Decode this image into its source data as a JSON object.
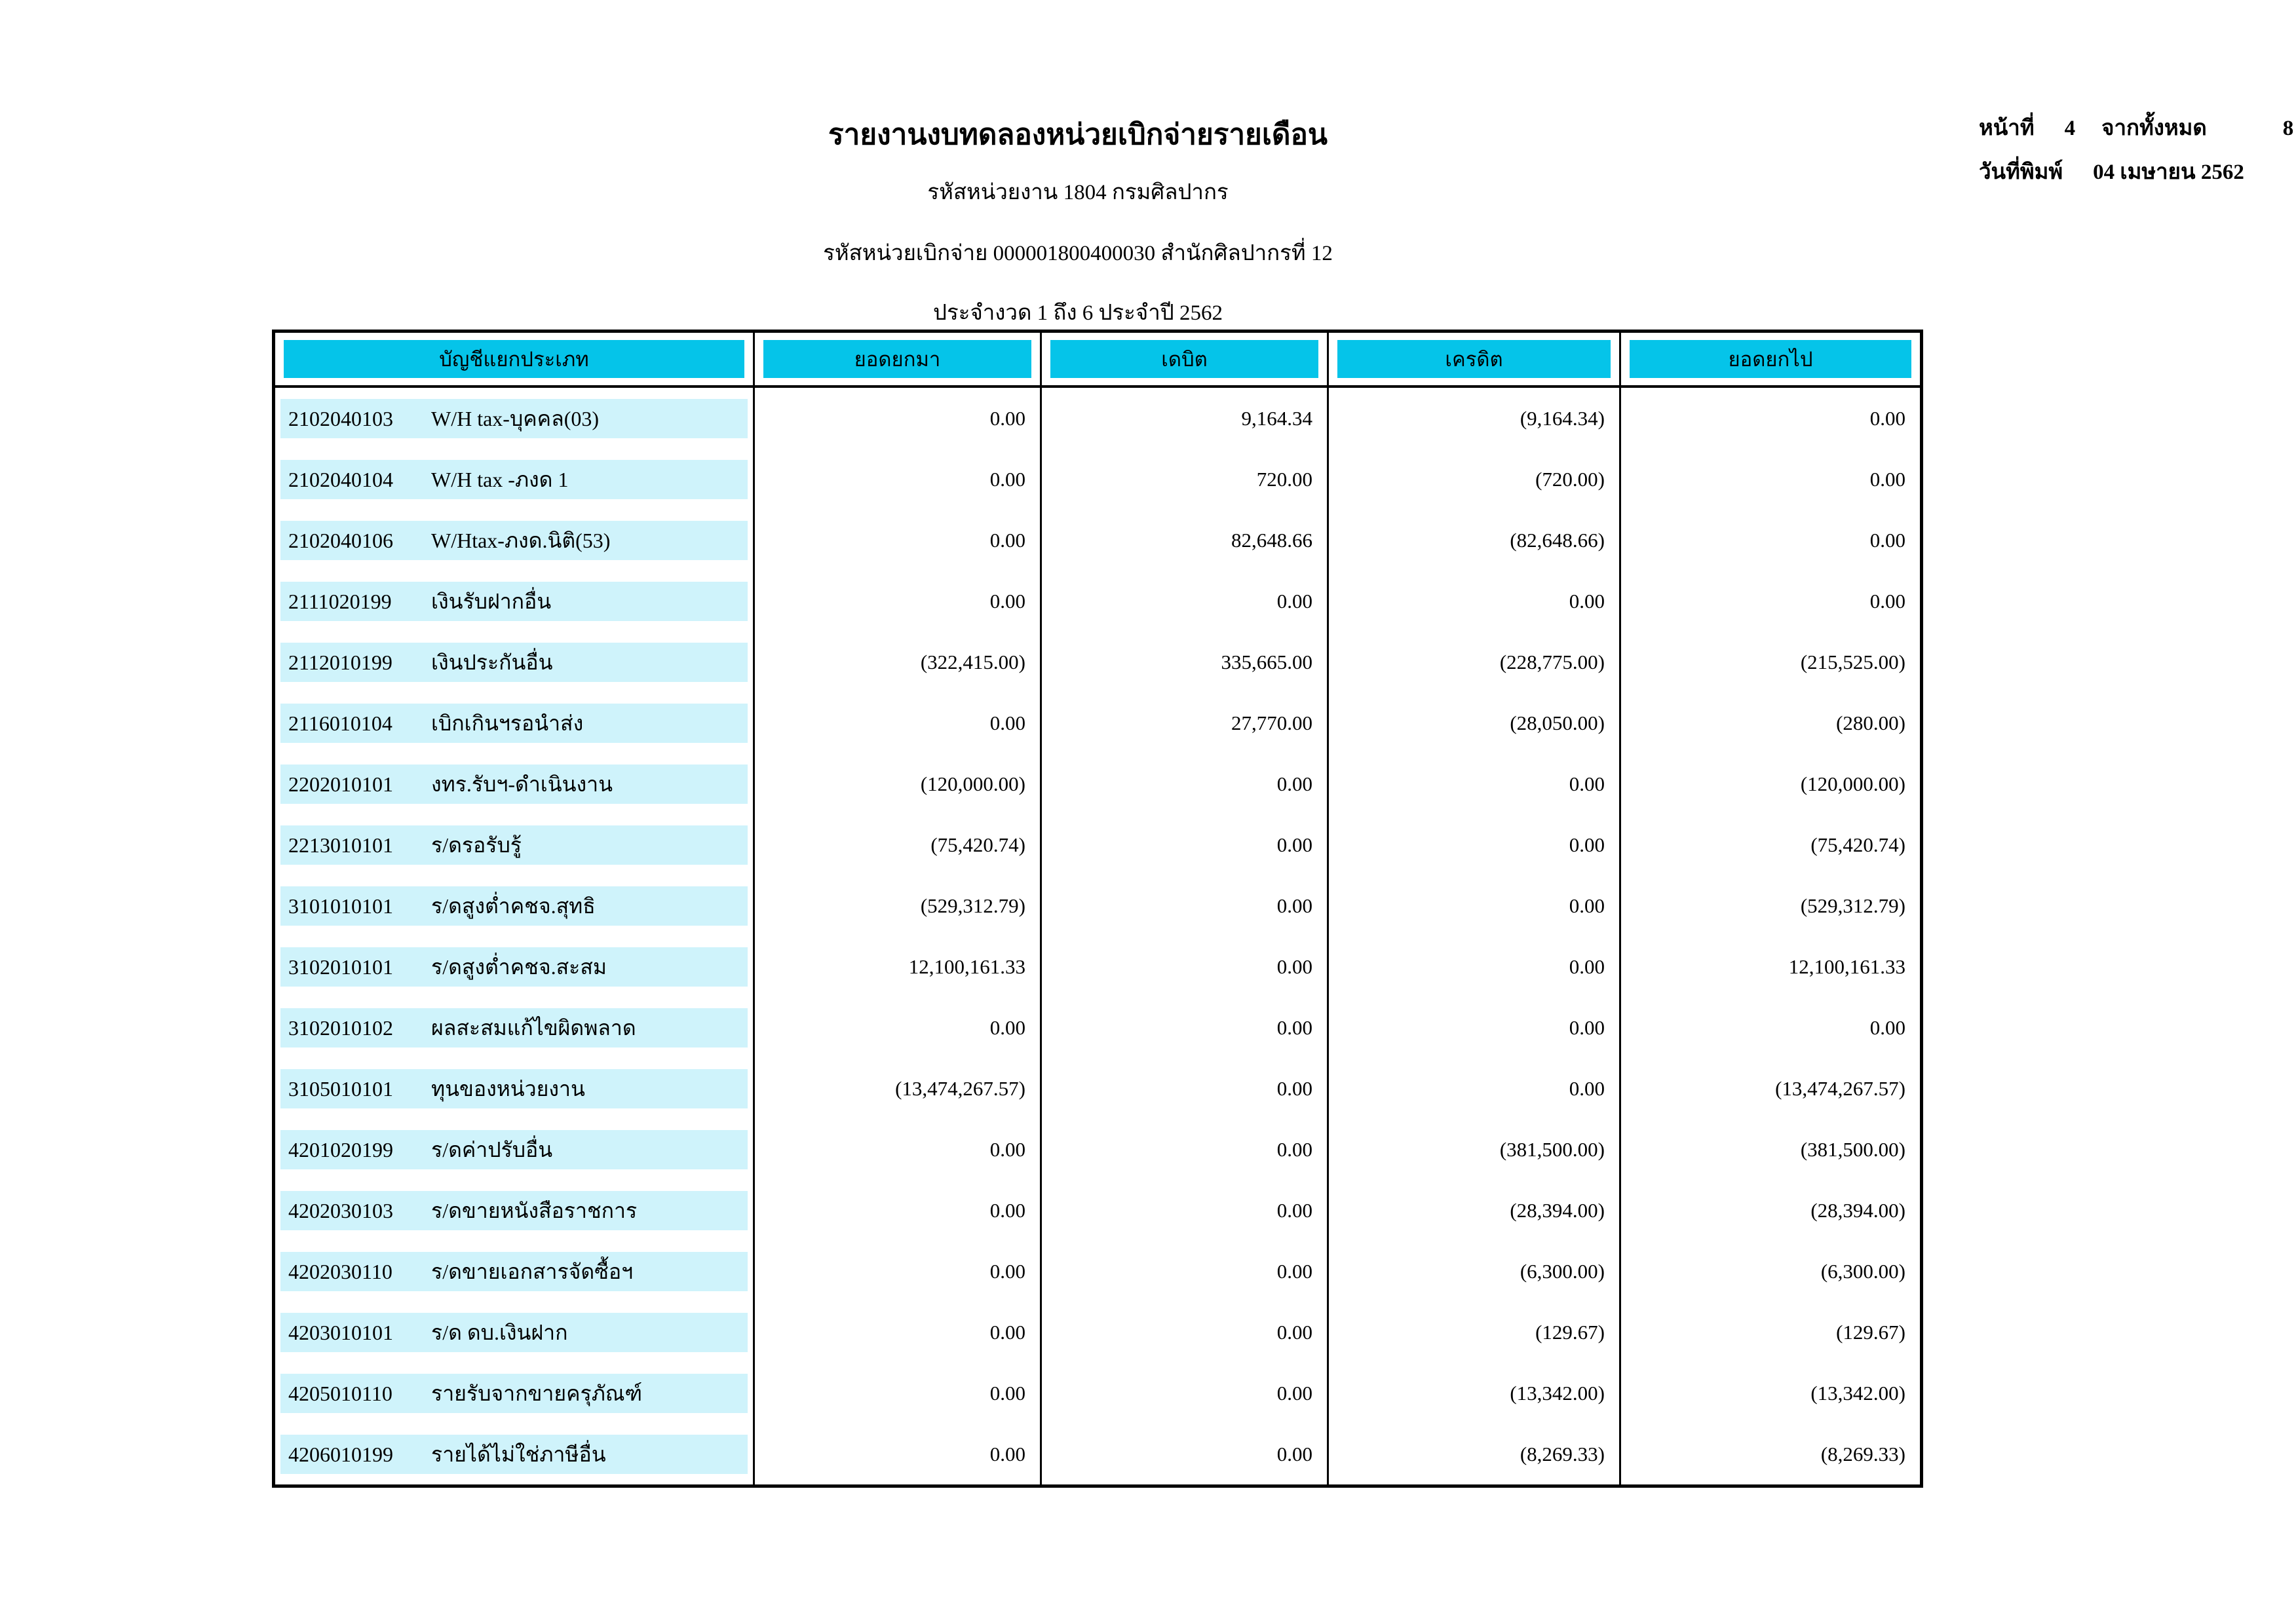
{
  "report": {
    "title": "รายงานงบทดลองหน่วยเบิกจ่ายรายเดือน",
    "agency_line": "รหัสหน่วยงาน 1804 กรมศิลปากร",
    "disbursement_line": "รหัสหน่วยเบิกจ่าย 000001800400030 สำนักศิลปากรที่ 12",
    "period_line": "ประจำงวด 1 ถึง 6 ประจำปี 2562"
  },
  "page_info": {
    "page_label": "หน้าที่",
    "page_number": "4",
    "total_label": "จากทั้งหมด",
    "total_pages": "8",
    "print_date_label": "วันที่พิมพ์",
    "print_date": "04 เมษายน 2562"
  },
  "colors": {
    "header_fill": "#05c4e9",
    "row_fill": "#cff3fb"
  },
  "table": {
    "columns": [
      "บัญชีแยกประเภท",
      "ยอดยกมา",
      "เดบิต",
      "เครดิต",
      "ยอดยกไป"
    ],
    "rows": [
      {
        "code": "2102040103",
        "name": "W/H tax-บุคคล(03)",
        "opening": "0.00",
        "debit": "9,164.34",
        "credit": "(9,164.34)",
        "closing": "0.00"
      },
      {
        "code": "2102040104",
        "name": "W/H tax -ภงด 1",
        "opening": "0.00",
        "debit": "720.00",
        "credit": "(720.00)",
        "closing": "0.00"
      },
      {
        "code": "2102040106",
        "name": "W/Htax-ภงด.นิติ(53)",
        "opening": "0.00",
        "debit": "82,648.66",
        "credit": "(82,648.66)",
        "closing": "0.00"
      },
      {
        "code": "2111020199",
        "name": "เงินรับฝากอื่น",
        "opening": "0.00",
        "debit": "0.00",
        "credit": "0.00",
        "closing": "0.00"
      },
      {
        "code": "2112010199",
        "name": "เงินประกันอื่น",
        "opening": "(322,415.00)",
        "debit": "335,665.00",
        "credit": "(228,775.00)",
        "closing": "(215,525.00)"
      },
      {
        "code": "2116010104",
        "name": "เบิกเกินฯรอนำส่ง",
        "opening": "0.00",
        "debit": "27,770.00",
        "credit": "(28,050.00)",
        "closing": "(280.00)"
      },
      {
        "code": "2202010101",
        "name": "งทร.รับฯ-ดำเนินงาน",
        "opening": "(120,000.00)",
        "debit": "0.00",
        "credit": "0.00",
        "closing": "(120,000.00)"
      },
      {
        "code": "2213010101",
        "name": "ร/ดรอรับรู้",
        "opening": "(75,420.74)",
        "debit": "0.00",
        "credit": "0.00",
        "closing": "(75,420.74)"
      },
      {
        "code": "3101010101",
        "name": "ร/ดสูงต่ำคชจ.สุทธิ",
        "opening": "(529,312.79)",
        "debit": "0.00",
        "credit": "0.00",
        "closing": "(529,312.79)"
      },
      {
        "code": "3102010101",
        "name": "ร/ดสูงต่ำคชจ.สะสม",
        "opening": "12,100,161.33",
        "debit": "0.00",
        "credit": "0.00",
        "closing": "12,100,161.33"
      },
      {
        "code": "3102010102",
        "name": "ผลสะสมแก้ไขผิดพลาด",
        "opening": "0.00",
        "debit": "0.00",
        "credit": "0.00",
        "closing": "0.00"
      },
      {
        "code": "3105010101",
        "name": "ทุนของหน่วยงาน",
        "opening": "(13,474,267.57)",
        "debit": "0.00",
        "credit": "0.00",
        "closing": "(13,474,267.57)"
      },
      {
        "code": "4201020199",
        "name": "ร/ดค่าปรับอื่น",
        "opening": "0.00",
        "debit": "0.00",
        "credit": "(381,500.00)",
        "closing": "(381,500.00)"
      },
      {
        "code": "4202030103",
        "name": "ร/ดขายหนังสือราชการ",
        "opening": "0.00",
        "debit": "0.00",
        "credit": "(28,394.00)",
        "closing": "(28,394.00)"
      },
      {
        "code": "4202030110",
        "name": "ร/ดขายเอกสารจัดซื้อฯ",
        "opening": "0.00",
        "debit": "0.00",
        "credit": "(6,300.00)",
        "closing": "(6,300.00)"
      },
      {
        "code": "4203010101",
        "name": "ร/ด ดบ.เงินฝาก",
        "opening": "0.00",
        "debit": "0.00",
        "credit": "(129.67)",
        "closing": "(129.67)"
      },
      {
        "code": "4205010110",
        "name": "รายรับจากขายครุภัณฑ์",
        "opening": "0.00",
        "debit": "0.00",
        "credit": "(13,342.00)",
        "closing": "(13,342.00)"
      },
      {
        "code": "4206010199",
        "name": "รายได้ไม่ใช่ภาษีอื่น",
        "opening": "0.00",
        "debit": "0.00",
        "credit": "(8,269.33)",
        "closing": "(8,269.33)"
      }
    ]
  }
}
